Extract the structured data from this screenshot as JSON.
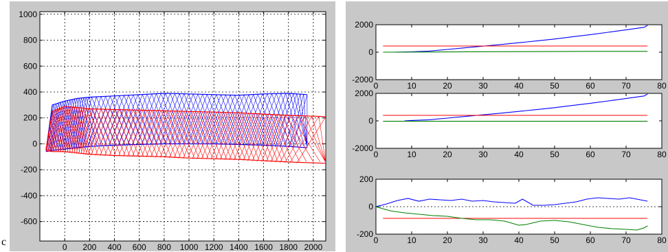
{
  "stray_text": "c",
  "colors": {
    "blue": "#0000ff",
    "red": "#ff0000",
    "green": "#008000",
    "background": "#c8c8c8",
    "plot_bg": "#ffffff"
  },
  "chart_data": [
    {
      "type": "line",
      "title": "",
      "xlabel": "",
      "ylabel": "",
      "xlim": [
        -200,
        2100
      ],
      "ylim": [
        -750,
        1020
      ],
      "x_ticks": [
        0,
        200,
        400,
        600,
        800,
        1000,
        1200,
        1400,
        1600,
        1800,
        2000
      ],
      "y_ticks": [
        -600,
        -400,
        -200,
        0,
        200,
        400,
        600,
        800,
        1000
      ],
      "grid": true,
      "series": [
        {
          "color": "blue",
          "x": [
            -150,
            -100,
            0,
            100,
            200,
            400,
            600,
            800,
            1000,
            1200,
            1400,
            1600,
            1800,
            1950
          ],
          "y_upper": [
            -50,
            300,
            330,
            350,
            360,
            370,
            380,
            390,
            385,
            380,
            375,
            385,
            390,
            380
          ],
          "y_lower": [
            -60,
            -50,
            -40,
            -30,
            -20,
            -10,
            -5,
            0,
            0,
            0,
            -5,
            -10,
            -20,
            -30
          ]
        },
        {
          "color": "red",
          "x": [
            -150,
            -100,
            0,
            100,
            200,
            400,
            600,
            800,
            1000,
            1200,
            1400,
            1600,
            1800,
            2100
          ],
          "y_upper": [
            -40,
            250,
            290,
            280,
            270,
            265,
            260,
            255,
            250,
            245,
            240,
            230,
            220,
            210
          ],
          "y_lower": [
            -50,
            -60,
            -60,
            -70,
            -80,
            -90,
            -95,
            -100,
            -110,
            -115,
            -120,
            -130,
            -140,
            -150
          ]
        }
      ]
    },
    {
      "type": "line",
      "title": "",
      "xlim": [
        0,
        80
      ],
      "ylim": [
        -2000,
        2000
      ],
      "x_ticks": [
        0,
        10,
        20,
        30,
        40,
        50,
        60,
        70,
        80
      ],
      "y_ticks": [
        -2000,
        0,
        2000
      ],
      "grid": false,
      "series": [
        {
          "color": "blue",
          "x": [
            5,
            10,
            15,
            20,
            25,
            30,
            35,
            40,
            45,
            50,
            55,
            60,
            65,
            70,
            75,
            76
          ],
          "y": [
            0,
            30,
            80,
            200,
            320,
            440,
            560,
            690,
            820,
            960,
            1120,
            1280,
            1450,
            1630,
            1810,
            1950
          ]
        },
        {
          "color": "red",
          "x": [
            2,
            76
          ],
          "y": [
            450,
            450
          ]
        },
        {
          "color": "green",
          "x": [
            2,
            20,
            40,
            60,
            76
          ],
          "y": [
            0,
            20,
            40,
            60,
            60
          ]
        }
      ]
    },
    {
      "type": "line",
      "title": "",
      "xlim": [
        0,
        80
      ],
      "ylim": [
        -2000,
        2000
      ],
      "x_ticks": [
        0,
        10,
        20,
        30,
        40,
        50,
        60,
        70,
        80
      ],
      "y_ticks": [
        -2000,
        0,
        2000
      ],
      "grid": false,
      "series": [
        {
          "color": "blue",
          "x": [
            8,
            10,
            15,
            20,
            25,
            30,
            35,
            40,
            45,
            50,
            55,
            60,
            65,
            70,
            75,
            76
          ],
          "y": [
            0,
            30,
            80,
            200,
            320,
            440,
            560,
            690,
            820,
            960,
            1120,
            1280,
            1450,
            1630,
            1810,
            1950
          ]
        },
        {
          "color": "red",
          "x": [
            2,
            76
          ],
          "y": [
            400,
            400
          ]
        },
        {
          "color": "green",
          "x": [
            2,
            76
          ],
          "y": [
            -30,
            -30
          ]
        }
      ]
    },
    {
      "type": "line",
      "title": "",
      "xlim": [
        0,
        80
      ],
      "ylim": [
        -200,
        200
      ],
      "x_ticks": [
        0,
        10,
        20,
        30,
        40,
        50,
        60,
        70,
        80
      ],
      "y_ticks": [
        -200,
        0,
        200
      ],
      "grid": false,
      "series": [
        {
          "color": "blue",
          "x": [
            0,
            3,
            6,
            9,
            12,
            15,
            18,
            21,
            24,
            27,
            30,
            33,
            36,
            39,
            41,
            44,
            47,
            50,
            53,
            56,
            59,
            62,
            65,
            68,
            71,
            74,
            76
          ],
          "y": [
            0,
            20,
            45,
            60,
            40,
            55,
            50,
            45,
            55,
            40,
            45,
            35,
            30,
            25,
            55,
            10,
            10,
            15,
            25,
            35,
            55,
            65,
            60,
            55,
            65,
            50,
            40
          ]
        },
        {
          "color": "red",
          "x": [
            2,
            76
          ],
          "y": [
            -85,
            -85
          ]
        },
        {
          "color": "green",
          "x": [
            0,
            4,
            8,
            12,
            16,
            20,
            24,
            28,
            32,
            36,
            40,
            42,
            46,
            50,
            54,
            58,
            62,
            66,
            70,
            73,
            75,
            76
          ],
          "y": [
            0,
            -30,
            -45,
            -55,
            -65,
            -70,
            -85,
            -95,
            -95,
            -105,
            -135,
            -130,
            -105,
            -100,
            -110,
            -130,
            -150,
            -160,
            -165,
            -170,
            -155,
            -140
          ]
        }
      ]
    }
  ]
}
